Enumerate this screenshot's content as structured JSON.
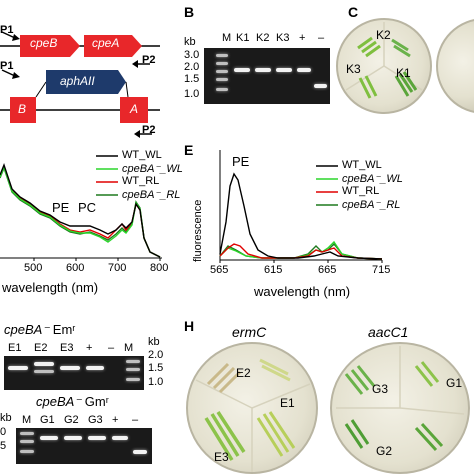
{
  "panel_A": {
    "p1_top": "P1",
    "p2_top": "P2",
    "gene1": "cpeB",
    "gene2": "cpeA",
    "p1_bottom": "P1",
    "p2_bottom": "P2",
    "cassette": "aphAII",
    "frag_b": "B",
    "frag_a": "A"
  },
  "panel_B": {
    "letter": "B",
    "kb_label": "kb",
    "ladder_values": [
      "3.0",
      "2.0",
      "1.5",
      "1.0"
    ],
    "lanes": [
      "M",
      "K1",
      "K2",
      "K3",
      "+",
      "–"
    ]
  },
  "panel_C": {
    "letter": "C",
    "colonies": [
      "K2",
      "K3",
      "K1"
    ]
  },
  "panel_D": {
    "legend": [
      "WT_WL",
      "cpeBA⁻_WL",
      "WT_RL",
      "cpeBA⁻_RL"
    ],
    "peak_pe": "PE",
    "peak_pc": "PC",
    "xlabel": "wavelength (nm)",
    "xticks": [
      "500",
      "600",
      "700",
      "800"
    ]
  },
  "panel_E": {
    "letter": "E",
    "ylabel": "fluorescence",
    "peak_pe": "PE",
    "legend": [
      "WT_WL",
      "cpeBA⁻_WL",
      "WT_RL",
      "cpeBA⁻_RL"
    ],
    "xlabel": "wavelength (nm)",
    "xticks": [
      "565",
      "615",
      "665",
      "715"
    ]
  },
  "panel_F": {
    "title_strain": "cpeBA⁻",
    "title_marker": "Emʳ",
    "lanes": [
      "E1",
      "E2",
      "E3",
      "+",
      "–",
      "M"
    ],
    "kb_label": "kb",
    "ladder_values": [
      "2.0",
      "1.5",
      "1.0"
    ]
  },
  "panel_G": {
    "title_strain": "cpeBA⁻",
    "title_marker": "Gmʳ",
    "lanes": [
      "M",
      "G1",
      "G2",
      "G3",
      "+",
      "–"
    ],
    "kb_label": "kb",
    "ladder_values": [
      "0",
      "5"
    ]
  },
  "panel_H": {
    "letter": "H",
    "plate1_title": "ermC",
    "plate2_title": "aacC1",
    "plate1_colonies": [
      "E2",
      "E1",
      "E3"
    ],
    "plate2_colonies": [
      "G3",
      "G1",
      "G2"
    ]
  },
  "colors": {
    "wt_wl": "#000000",
    "mut_wl": "#2bd62b",
    "wt_rl": "#e00000",
    "mut_rl": "#1f7a1f",
    "gene_red": "#e8272a",
    "cassette_blue": "#1e3a6b"
  }
}
